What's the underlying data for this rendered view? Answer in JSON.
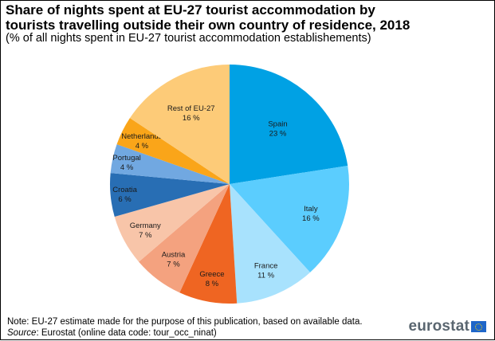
{
  "chart_data": {
    "type": "pie",
    "title": "Share of nights spent at EU-27 tourist accommodation by tourists travelling outside their own country of residence, 2018",
    "title_lines": [
      "Share of nights spent at EU-27 tourist accommodation by",
      "tourists travelling outside their own country of residence, 2018"
    ],
    "subtitle": "(% of all nights spent in EU-27 tourist accommodation establishements)",
    "start_angle": "12 o'clock",
    "direction": "clockwise",
    "unit": "%",
    "slices": [
      {
        "label": "Spain",
        "value": 23,
        "value_label": "23 %",
        "color": "#00a1e4"
      },
      {
        "label": "Italy",
        "value": 16,
        "value_label": "16 %",
        "color": "#5bcdfe"
      },
      {
        "label": "France",
        "value": 11,
        "value_label": "11 %",
        "color": "#a8e2fd"
      },
      {
        "label": "Greece",
        "value": 8,
        "value_label": "8 %",
        "color": "#ef6522"
      },
      {
        "label": "Austria",
        "value": 7,
        "value_label": "7 %",
        "color": "#f4a27f"
      },
      {
        "label": "Germany",
        "value": 7,
        "value_label": "7 %",
        "color": "#f8c5a9"
      },
      {
        "label": "Croatia",
        "value": 6,
        "value_label": "6 %",
        "color": "#286eb4"
      },
      {
        "label": "Portugal",
        "value": 4,
        "value_label": "4 %",
        "color": "#71a8e1"
      },
      {
        "label": "Netherlands",
        "value": 4,
        "value_label": "4 %",
        "color": "#faa519"
      },
      {
        "label": "Rest of EU-27",
        "value": 16,
        "value_label": "16 %",
        "color": "#fdcb78"
      }
    ],
    "legend": "none (labels inside slices)"
  },
  "footer": {
    "note": "Note: EU-27 estimate made for the purpose of this publication, based on available data.",
    "source_label": "Source",
    "source_text": ": Eurostat (online data code: tour_occ_ninat)",
    "logo_text": "eurostat"
  }
}
